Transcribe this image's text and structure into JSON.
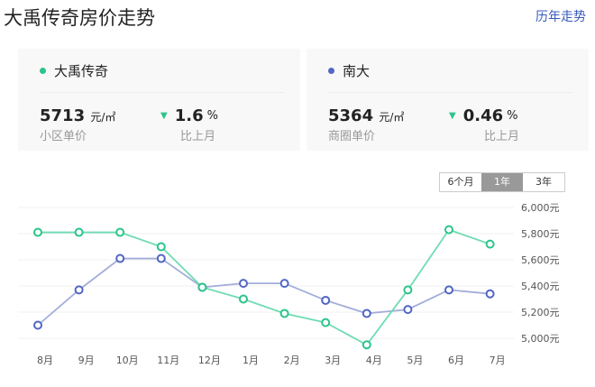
{
  "header": {
    "title": "大禹传奇房价走势",
    "history_link": "历年走势"
  },
  "cards": [
    {
      "name": "大禹传奇",
      "color": "#2bc48a",
      "price": "5713",
      "unit": "元/㎡",
      "price_label": "小区单价",
      "change": "1.6",
      "change_unit": "%",
      "change_label": "比上月",
      "direction": "down"
    },
    {
      "name": "南大",
      "color": "#5266c4",
      "price": "5364",
      "unit": "元/㎡",
      "price_label": "商圈单价",
      "change": "0.46",
      "change_unit": "%",
      "change_label": "比上月",
      "direction": "down"
    }
  ],
  "range_buttons": [
    {
      "label": "6个月",
      "active": false
    },
    {
      "label": "1年",
      "active": true
    },
    {
      "label": "3年",
      "active": false
    }
  ],
  "chart_data": {
    "type": "line",
    "categories": [
      "8月",
      "9月",
      "10月",
      "11月",
      "12月",
      "1月",
      "2月",
      "3月",
      "4月",
      "5月",
      "6月",
      "7月"
    ],
    "yticks": [
      "5,000元",
      "5,200元",
      "5,400元",
      "5,600元",
      "5,800元",
      "6,000元"
    ],
    "ylim": [
      5000,
      6000
    ],
    "grid": true,
    "series": [
      {
        "name": "大禹传奇",
        "color": "#2bc48a",
        "line_color": "#6fdcb3",
        "values": [
          5810,
          5810,
          5810,
          5700,
          5390,
          5300,
          5190,
          5120,
          4950,
          5370,
          5830,
          5720
        ]
      },
      {
        "name": "南大",
        "color": "#5266c4",
        "line_color": "#a3add9",
        "values": [
          5100,
          5370,
          5610,
          5610,
          5390,
          5420,
          5420,
          5290,
          5190,
          5220,
          5370,
          5340
        ]
      }
    ]
  }
}
